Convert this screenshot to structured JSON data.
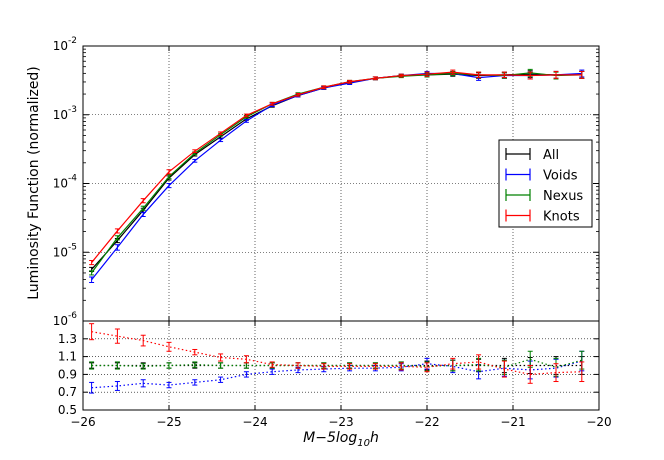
{
  "chart_data": [
    {
      "type": "line",
      "panel": "top",
      "yscale": "log",
      "xlim": [
        -26,
        -20
      ],
      "ylim_exponent": [
        -6,
        -2
      ],
      "ylabel": "Luminosity Function (normalized)",
      "grid": true,
      "legend_placement": "right",
      "x": [
        -25.9,
        -25.6,
        -25.3,
        -25.0,
        -24.7,
        -24.4,
        -24.1,
        -23.8,
        -23.5,
        -23.2,
        -22.9,
        -22.6,
        -22.3,
        -22.0,
        -21.7,
        -21.4,
        -21.1,
        -20.8,
        -20.5,
        -20.2
      ],
      "series": [
        {
          "name": "All",
          "color": "#000000",
          "log10_y": [
            -5.25,
            -4.83,
            -4.39,
            -3.92,
            -3.58,
            -3.32,
            -3.06,
            -2.87,
            -2.72,
            -2.61,
            -2.53,
            -2.47,
            -2.43,
            -2.42,
            -2.41,
            -2.43,
            -2.42,
            -2.41,
            -2.42,
            -2.42
          ],
          "errors_log10": [
            0.03,
            0.03,
            0.03,
            0.03,
            0.02,
            0.02,
            0.02,
            0.02,
            0.02,
            0.02,
            0.02,
            0.02,
            0.02,
            0.03,
            0.03,
            0.04,
            0.04,
            0.05,
            0.05,
            0.05
          ]
        },
        {
          "name": "Voids",
          "color": "#0000ff",
          "log10_y": [
            -5.4,
            -4.93,
            -4.45,
            -4.03,
            -3.67,
            -3.37,
            -3.09,
            -2.86,
            -2.72,
            -2.61,
            -2.54,
            -2.47,
            -2.43,
            -2.4,
            -2.4,
            -2.46,
            -2.43,
            -2.43,
            -2.42,
            -2.4
          ],
          "errors_log10": [
            0.04,
            0.04,
            0.03,
            0.03,
            0.02,
            0.02,
            0.02,
            0.02,
            0.02,
            0.02,
            0.02,
            0.02,
            0.02,
            0.03,
            0.03,
            0.04,
            0.04,
            0.05,
            0.05,
            0.05
          ]
        },
        {
          "name": "Nexus",
          "color": "#008000",
          "log10_y": [
            -5.3,
            -4.79,
            -4.36,
            -3.9,
            -3.56,
            -3.29,
            -3.03,
            -2.84,
            -2.7,
            -2.6,
            -2.52,
            -2.47,
            -2.44,
            -2.42,
            -2.4,
            -2.42,
            -2.43,
            -2.39,
            -2.43,
            -2.42
          ],
          "errors_log10": [
            0.03,
            0.03,
            0.03,
            0.03,
            0.02,
            0.02,
            0.02,
            0.02,
            0.02,
            0.02,
            0.02,
            0.02,
            0.02,
            0.03,
            0.03,
            0.04,
            0.04,
            0.05,
            0.05,
            0.05
          ]
        },
        {
          "name": "Knots",
          "color": "#ff0000",
          "log10_y": [
            -5.15,
            -4.69,
            -4.25,
            -3.83,
            -3.53,
            -3.27,
            -3.01,
            -2.84,
            -2.71,
            -2.6,
            -2.52,
            -2.47,
            -2.43,
            -2.41,
            -2.38,
            -2.42,
            -2.42,
            -2.43,
            -2.42,
            -2.42
          ],
          "errors_log10": [
            0.03,
            0.03,
            0.03,
            0.03,
            0.02,
            0.02,
            0.02,
            0.02,
            0.02,
            0.02,
            0.02,
            0.02,
            0.02,
            0.03,
            0.03,
            0.04,
            0.04,
            0.05,
            0.05,
            0.05
          ]
        }
      ],
      "y_tick_labels": [
        {
          "base": "10",
          "exp": "-2",
          "exponent": -2
        },
        {
          "base": "10",
          "exp": "-3",
          "exponent": -3
        },
        {
          "base": "10",
          "exp": "-4",
          "exponent": -4
        },
        {
          "base": "10",
          "exp": "-5",
          "exponent": -5
        },
        {
          "base": "10",
          "exp": "-6",
          "exponent": -6
        }
      ]
    },
    {
      "type": "line",
      "panel": "bottom",
      "xlim": [
        -26,
        -20
      ],
      "ylim": [
        0.5,
        1.5
      ],
      "xlabel_parts": {
        "main": "M−5log",
        "sub": "10",
        "tail": "h"
      },
      "grid": true,
      "line_style": "dotted",
      "x": [
        -25.9,
        -25.6,
        -25.3,
        -25.0,
        -24.7,
        -24.4,
        -24.1,
        -23.8,
        -23.5,
        -23.2,
        -22.9,
        -22.6,
        -22.3,
        -22.0,
        -21.7,
        -21.4,
        -21.1,
        -20.8,
        -20.5,
        -20.2
      ],
      "series": [
        {
          "name": "All",
          "color": "#000000",
          "values": [
            1.0,
            1.0,
            1.0,
            1.0,
            1.0,
            1.0,
            1.0,
            1.0,
            1.0,
            1.0,
            1.0,
            1.0,
            1.0,
            1.0,
            1.0,
            1.0,
            1.0,
            1.0,
            1.0,
            1.0
          ],
          "errors": [
            0.03,
            0.03,
            0.03,
            0.03,
            0.03,
            0.03,
            0.03,
            0.03,
            0.03,
            0.03,
            0.03,
            0.03,
            0.04,
            0.05,
            0.06,
            0.07,
            0.08,
            0.09,
            0.1,
            0.1
          ]
        },
        {
          "name": "Voids",
          "color": "#0000ff",
          "values": [
            0.75,
            0.77,
            0.8,
            0.78,
            0.81,
            0.84,
            0.9,
            0.93,
            0.95,
            0.96,
            0.97,
            0.97,
            0.98,
            1.02,
            0.99,
            0.93,
            0.97,
            0.95,
            0.97,
            1.05
          ],
          "errors": [
            0.06,
            0.05,
            0.04,
            0.03,
            0.03,
            0.03,
            0.03,
            0.03,
            0.03,
            0.03,
            0.03,
            0.03,
            0.04,
            0.06,
            0.07,
            0.08,
            0.09,
            0.1,
            0.1,
            0.11
          ]
        },
        {
          "name": "Nexus",
          "color": "#008000",
          "values": [
            1.0,
            1.0,
            0.99,
            1.0,
            1.01,
            1.0,
            1.0,
            1.0,
            1.0,
            1.0,
            1.0,
            1.0,
            1.0,
            0.99,
            1.0,
            1.01,
            0.98,
            1.07,
            0.98,
            1.06
          ],
          "errors": [
            0.04,
            0.04,
            0.03,
            0.03,
            0.03,
            0.03,
            0.03,
            0.03,
            0.03,
            0.03,
            0.03,
            0.03,
            0.04,
            0.05,
            0.06,
            0.07,
            0.08,
            0.09,
            0.1,
            0.1
          ]
        },
        {
          "name": "Knots",
          "color": "#ff0000",
          "values": [
            1.38,
            1.33,
            1.28,
            1.21,
            1.15,
            1.09,
            1.07,
            1.01,
            1.0,
            0.99,
            0.99,
            0.99,
            0.99,
            0.98,
            1.02,
            1.04,
            0.96,
            0.9,
            0.92,
            0.93
          ],
          "errors": [
            0.09,
            0.08,
            0.06,
            0.05,
            0.03,
            0.04,
            0.04,
            0.03,
            0.03,
            0.03,
            0.03,
            0.03,
            0.04,
            0.05,
            0.06,
            0.08,
            0.09,
            0.1,
            0.1,
            0.11
          ]
        }
      ],
      "y_ticks": [
        0.5,
        0.7,
        0.9,
        1.1,
        1.3
      ],
      "y_tick_labels": [
        "0.5",
        "0.7",
        "0.9",
        "1.1",
        "1.3"
      ],
      "x_ticks": [
        -26,
        -25,
        -24,
        -23,
        -22,
        -21,
        -20
      ],
      "x_tick_labels": [
        "−26",
        "−25",
        "−24",
        "−23",
        "−22",
        "−21",
        "−20"
      ]
    }
  ]
}
